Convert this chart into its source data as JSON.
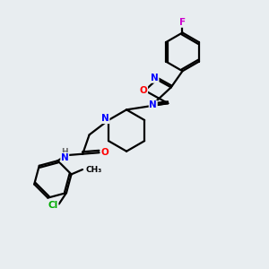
{
  "background_color": "#e8edf0",
  "bond_color": "#000000",
  "atom_colors": {
    "N": "#0000ff",
    "O": "#ff0000",
    "F": "#cc00cc",
    "Cl": "#00aa00",
    "C": "#000000",
    "H": "#666666"
  },
  "figsize": [
    3.0,
    3.0
  ],
  "dpi": 100
}
